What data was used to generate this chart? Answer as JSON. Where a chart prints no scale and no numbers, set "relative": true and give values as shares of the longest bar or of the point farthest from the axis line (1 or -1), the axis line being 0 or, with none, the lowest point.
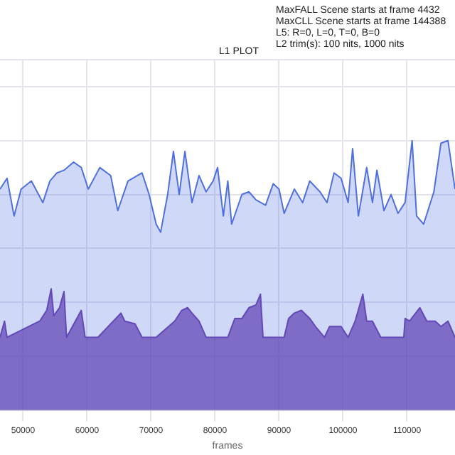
{
  "chart_data": {
    "type": "area",
    "title": "L1 PLOT",
    "xlabel": "frames",
    "relative": true,
    "annotations": [
      "MaxFALL Scene starts at frame 4432",
      "MaxCLL Scene starts at frame 144388",
      "L5: R=0, L=0, T=0, B=0",
      "L2 trim(s): 100 nits, 1000 nits"
    ],
    "xlim": [
      46400,
      117500
    ],
    "xticks": [
      50000,
      60000,
      70000,
      80000,
      90000,
      100000,
      110000
    ],
    "grid": true,
    "series": [
      {
        "color": "#5070e0",
        "x": [
          46400,
          47500,
          48600,
          49700,
          51300,
          53100,
          54200,
          55300,
          56400,
          57900,
          59100,
          60200,
          62000,
          63700,
          64800,
          66400,
          68600,
          69700,
          70800,
          71500,
          72600,
          73500,
          74400,
          75300,
          76400,
          77500,
          78600,
          79700,
          80400,
          81300,
          82000,
          82600,
          84200,
          85300,
          86400,
          87900,
          89100,
          90000,
          90800,
          92400,
          93700,
          94800,
          96400,
          97500,
          98600,
          99700,
          100800,
          101500,
          102400,
          103700,
          104600,
          105300,
          106400,
          107500,
          108600,
          109700,
          110800,
          111500,
          112600,
          114200,
          115300,
          116400,
          117500
        ],
        "values": [
          0.82,
          0.86,
          0.72,
          0.82,
          0.85,
          0.77,
          0.85,
          0.88,
          0.89,
          0.92,
          0.9,
          0.82,
          0.9,
          0.87,
          0.74,
          0.85,
          0.88,
          0.8,
          0.69,
          0.66,
          0.8,
          0.96,
          0.8,
          0.96,
          0.77,
          0.87,
          0.81,
          0.85,
          0.9,
          0.72,
          0.85,
          0.69,
          0.8,
          0.81,
          0.78,
          0.76,
          0.84,
          0.82,
          0.73,
          0.82,
          0.77,
          0.85,
          0.81,
          0.77,
          0.88,
          0.86,
          0.77,
          0.97,
          0.72,
          0.9,
          0.77,
          0.89,
          0.74,
          0.8,
          0.73,
          0.77,
          1,
          0.72,
          0.69,
          0.81,
          0.99,
          1,
          0.82
        ]
      },
      {
        "color": "#6a3aa8",
        "x": [
          46400,
          47100,
          47500,
          52600,
          53700,
          54400,
          54800,
          55700,
          56400,
          56800,
          59100,
          59700,
          61700,
          65300,
          65900,
          67500,
          68600,
          70800,
          73700,
          74800,
          75700,
          76400,
          77500,
          78600,
          82000,
          83100,
          84200,
          85300,
          86400,
          87100,
          87500,
          90800,
          91500,
          92400,
          93500,
          94800,
          95700,
          97100,
          97900,
          99700,
          100800,
          101900,
          103100,
          103700,
          104600,
          105900,
          109500,
          109700,
          110400,
          112000,
          113100,
          114400,
          115300,
          116400,
          117500
        ],
        "values": [
          0.27,
          0.33,
          0.27,
          0.33,
          0.37,
          0.45,
          0.35,
          0.38,
          0.44,
          0.27,
          0.37,
          0.27,
          0.27,
          0.36,
          0.33,
          0.32,
          0.27,
          0.27,
          0.33,
          0.37,
          0.38,
          0.36,
          0.33,
          0.27,
          0.27,
          0.34,
          0.34,
          0.38,
          0.39,
          0.43,
          0.27,
          0.27,
          0.34,
          0.36,
          0.37,
          0.34,
          0.31,
          0.27,
          0.31,
          0.31,
          0.27,
          0.33,
          0.43,
          0.33,
          0.33,
          0.27,
          0.27,
          0.34,
          0.33,
          0.38,
          0.33,
          0.33,
          0.31,
          0.33,
          0.27
        ]
      }
    ]
  }
}
